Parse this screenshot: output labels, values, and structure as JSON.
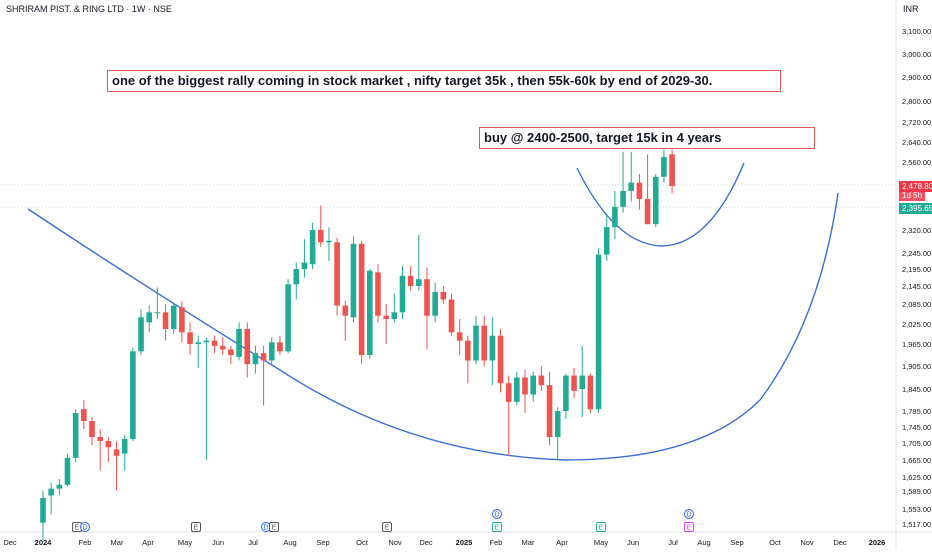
{
  "header": {
    "symbol_title": "SHRIRAM PIST. & RING LTD · 1W · NSE",
    "currency": "INR"
  },
  "annotations": {
    "note_rally": "one of the biggest rally coming in stock market , nifty target 35k , then 55k-60k by end of 2029-30.",
    "note_trade": "buy @ 2400-2500, target 15k in 4 years"
  },
  "price_tags": {
    "last_price": "2,478.80",
    "countdown": "1d 5h",
    "line_price": "2,395.65"
  },
  "colors": {
    "up": "#22ab94",
    "down": "#ef5350",
    "trendline": "#3a6fd6",
    "annotation_border": "#e05a5a"
  },
  "chart_data": {
    "type": "candlestick",
    "y_axis_ticks": [
      "3,100.00",
      "3,000.00",
      "2,900.00",
      "2,800.00",
      "2,720.00",
      "2,640.00",
      "2,560.00",
      "2,478.80",
      "2,395.65",
      "2,320.00",
      "2,245.00",
      "2,195.00",
      "2,145.00",
      "2,085.00",
      "2,025.00",
      "1,965.00",
      "1,905.00",
      "1,845.00",
      "1,785.00",
      "1,745.00",
      "1,705.00",
      "1,665.00",
      "1,625.00",
      "1,589.00",
      "1,553.00",
      "1,517.00"
    ],
    "x_axis_ticks": [
      "Dec",
      "2024",
      "Feb",
      "Mar",
      "Apr",
      "May",
      "Jun",
      "Jul",
      "Aug",
      "Sep",
      "Oct",
      "Nov",
      "Dec",
      "2025",
      "Feb",
      "Mar",
      "Apr",
      "May",
      "Jun",
      "Jul",
      "Aug",
      "Sep",
      "Oct",
      "Nov",
      "Dec",
      "2026"
    ],
    "event_markers": [
      "E",
      "D",
      "E",
      "D",
      "E",
      "E",
      "D",
      "E",
      "E",
      "D",
      "E"
    ],
    "candles": [
      {
        "o": 1520,
        "h": 1590,
        "l": 1480,
        "c": 1575
      },
      {
        "o": 1580,
        "h": 1610,
        "l": 1540,
        "c": 1595
      },
      {
        "o": 1595,
        "h": 1620,
        "l": 1580,
        "c": 1605
      },
      {
        "o": 1605,
        "h": 1680,
        "l": 1600,
        "c": 1670
      },
      {
        "o": 1670,
        "h": 1790,
        "l": 1660,
        "c": 1780
      },
      {
        "o": 1790,
        "h": 1815,
        "l": 1740,
        "c": 1760
      },
      {
        "o": 1760,
        "h": 1770,
        "l": 1700,
        "c": 1720
      },
      {
        "o": 1720,
        "h": 1740,
        "l": 1640,
        "c": 1710
      },
      {
        "o": 1710,
        "h": 1720,
        "l": 1660,
        "c": 1695
      },
      {
        "o": 1690,
        "h": 1710,
        "l": 1590,
        "c": 1675
      },
      {
        "o": 1680,
        "h": 1725,
        "l": 1640,
        "c": 1715
      },
      {
        "o": 1715,
        "h": 1955,
        "l": 1710,
        "c": 1945
      },
      {
        "o": 1945,
        "h": 2070,
        "l": 1935,
        "c": 2045
      },
      {
        "o": 2030,
        "h": 2080,
        "l": 2000,
        "c": 2060
      },
      {
        "o": 2060,
        "h": 2140,
        "l": 2040,
        "c": 2060
      },
      {
        "o": 2060,
        "h": 2085,
        "l": 1975,
        "c": 2010
      },
      {
        "o": 2010,
        "h": 2085,
        "l": 1995,
        "c": 2080
      },
      {
        "o": 2075,
        "h": 2095,
        "l": 1970,
        "c": 2000
      },
      {
        "o": 2000,
        "h": 2030,
        "l": 1935,
        "c": 1965
      },
      {
        "o": 1965,
        "h": 1990,
        "l": 1900,
        "c": 1970
      },
      {
        "o": 1970,
        "h": 1985,
        "l": 1665,
        "c": 1975
      },
      {
        "o": 1975,
        "h": 1990,
        "l": 1940,
        "c": 1960
      },
      {
        "o": 1960,
        "h": 1985,
        "l": 1935,
        "c": 1950
      },
      {
        "o": 1950,
        "h": 1960,
        "l": 1910,
        "c": 1935
      },
      {
        "o": 1930,
        "h": 2030,
        "l": 1920,
        "c": 2010
      },
      {
        "o": 2010,
        "h": 2030,
        "l": 1875,
        "c": 1910
      },
      {
        "o": 1910,
        "h": 1960,
        "l": 1885,
        "c": 1940
      },
      {
        "o": 1940,
        "h": 1960,
        "l": 1800,
        "c": 1920
      },
      {
        "o": 1920,
        "h": 1985,
        "l": 1910,
        "c": 1970
      },
      {
        "o": 1970,
        "h": 1990,
        "l": 1935,
        "c": 1945
      },
      {
        "o": 1945,
        "h": 2165,
        "l": 1940,
        "c": 2150
      },
      {
        "o": 2150,
        "h": 2215,
        "l": 2100,
        "c": 2195
      },
      {
        "o": 2195,
        "h": 2290,
        "l": 2170,
        "c": 2215
      },
      {
        "o": 2210,
        "h": 2345,
        "l": 2195,
        "c": 2320
      },
      {
        "o": 2320,
        "h": 2405,
        "l": 2265,
        "c": 2280
      },
      {
        "o": 2280,
        "h": 2330,
        "l": 2220,
        "c": 2285
      },
      {
        "o": 2280,
        "h": 2295,
        "l": 2050,
        "c": 2080
      },
      {
        "o": 2080,
        "h": 2095,
        "l": 1975,
        "c": 2050
      },
      {
        "o": 2045,
        "h": 2300,
        "l": 2030,
        "c": 2275
      },
      {
        "o": 2275,
        "h": 2285,
        "l": 1910,
        "c": 1935
      },
      {
        "o": 1935,
        "h": 2195,
        "l": 1925,
        "c": 2190
      },
      {
        "o": 2185,
        "h": 2210,
        "l": 2030,
        "c": 2050
      },
      {
        "o": 2050,
        "h": 2085,
        "l": 1965,
        "c": 2040
      },
      {
        "o": 2040,
        "h": 2120,
        "l": 2030,
        "c": 2060
      },
      {
        "o": 2060,
        "h": 2205,
        "l": 2040,
        "c": 2175
      },
      {
        "o": 2175,
        "h": 2205,
        "l": 2130,
        "c": 2145
      },
      {
        "o": 2145,
        "h": 2305,
        "l": 2130,
        "c": 2165
      },
      {
        "o": 2165,
        "h": 2200,
        "l": 1950,
        "c": 2050
      },
      {
        "o": 2050,
        "h": 2155,
        "l": 2030,
        "c": 2125
      },
      {
        "o": 2125,
        "h": 2145,
        "l": 2085,
        "c": 2100
      },
      {
        "o": 2100,
        "h": 2120,
        "l": 1990,
        "c": 2000
      },
      {
        "o": 2000,
        "h": 2040,
        "l": 1935,
        "c": 1975
      },
      {
        "o": 1975,
        "h": 1990,
        "l": 1860,
        "c": 1920
      },
      {
        "o": 1920,
        "h": 2050,
        "l": 1910,
        "c": 2020
      },
      {
        "o": 2020,
        "h": 2050,
        "l": 1905,
        "c": 1920
      },
      {
        "o": 1920,
        "h": 2045,
        "l": 1855,
        "c": 1990
      },
      {
        "o": 1990,
        "h": 2010,
        "l": 1835,
        "c": 1860
      },
      {
        "o": 1860,
        "h": 1880,
        "l": 1675,
        "c": 1810
      },
      {
        "o": 1810,
        "h": 1890,
        "l": 1800,
        "c": 1875
      },
      {
        "o": 1875,
        "h": 1895,
        "l": 1780,
        "c": 1830
      },
      {
        "o": 1830,
        "h": 1890,
        "l": 1810,
        "c": 1880
      },
      {
        "o": 1880,
        "h": 1905,
        "l": 1840,
        "c": 1855
      },
      {
        "o": 1855,
        "h": 1890,
        "l": 1700,
        "c": 1720
      },
      {
        "o": 1720,
        "h": 1795,
        "l": 1665,
        "c": 1785
      },
      {
        "o": 1785,
        "h": 1885,
        "l": 1765,
        "c": 1880
      },
      {
        "o": 1880,
        "h": 1900,
        "l": 1820,
        "c": 1840
      },
      {
        "o": 1845,
        "h": 1960,
        "l": 1770,
        "c": 1880
      },
      {
        "o": 1880,
        "h": 1885,
        "l": 1780,
        "c": 1790
      },
      {
        "o": 1790,
        "h": 2260,
        "l": 1780,
        "c": 2240
      },
      {
        "o": 2240,
        "h": 2370,
        "l": 2220,
        "c": 2330
      },
      {
        "o": 2330,
        "h": 2460,
        "l": 2290,
        "c": 2400
      },
      {
        "o": 2400,
        "h": 2600,
        "l": 2380,
        "c": 2460
      },
      {
        "o": 2460,
        "h": 2600,
        "l": 2420,
        "c": 2490
      },
      {
        "o": 2490,
        "h": 2520,
        "l": 2390,
        "c": 2430
      },
      {
        "o": 2430,
        "h": 2590,
        "l": 2340,
        "c": 2340
      },
      {
        "o": 2340,
        "h": 2520,
        "l": 2330,
        "c": 2510
      },
      {
        "o": 2510,
        "h": 2610,
        "l": 2490,
        "c": 2580
      },
      {
        "o": 2590,
        "h": 2610,
        "l": 2450,
        "c": 2478.8
      }
    ]
  }
}
